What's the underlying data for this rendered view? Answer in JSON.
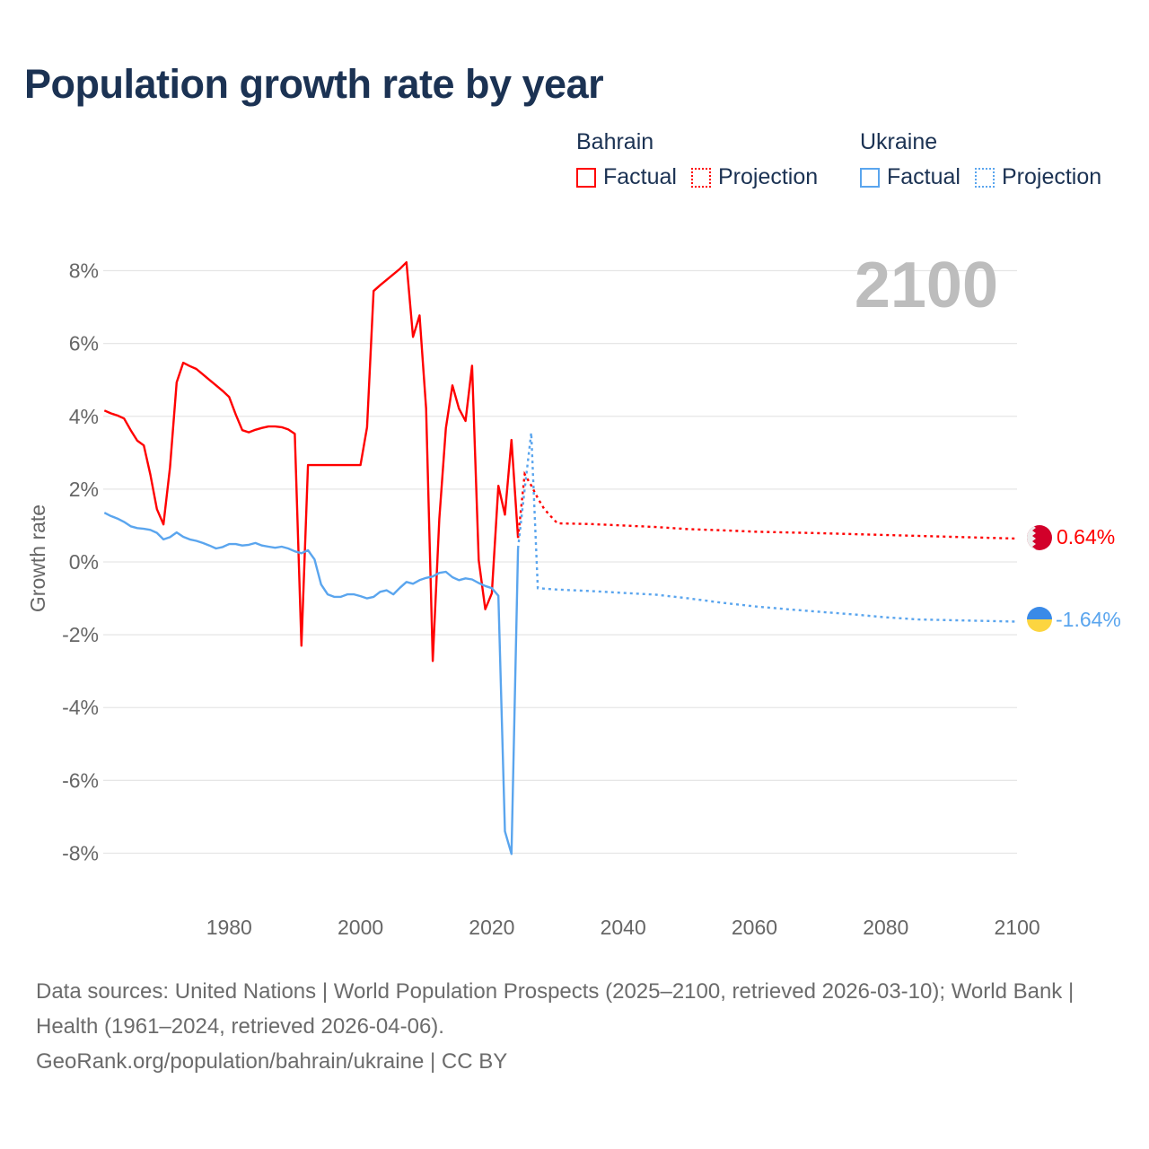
{
  "title": "Population growth rate by year",
  "legend": {
    "groups": [
      {
        "name": "Bahrain",
        "factual": "Factual",
        "projection": "Projection",
        "color": "#ff0000"
      },
      {
        "name": "Ukraine",
        "factual": "Factual",
        "projection": "Projection",
        "color": "#5aa5ee"
      }
    ]
  },
  "chart_data": {
    "type": "line",
    "title": "Population growth rate by year",
    "xlabel": "",
    "ylabel": "Growth rate",
    "xlim": [
      1961,
      2100
    ],
    "ylim": [
      -9,
      9
    ],
    "x_ticks": [
      1980,
      2000,
      2020,
      2040,
      2060,
      2080,
      2100
    ],
    "y_ticks": [
      8,
      6,
      4,
      2,
      0,
      -2,
      -4,
      -6,
      -8
    ],
    "y_tick_labels": [
      "8%",
      "6%",
      "4%",
      "2%",
      "0%",
      "-2%",
      "-4%",
      "-6%",
      "-8%"
    ],
    "year_watermark": "2100",
    "grid": true,
    "series": [
      {
        "name": "Bahrain",
        "color": "#ff0000",
        "factual": {
          "x": [
            1961,
            1962,
            1963,
            1964,
            1965,
            1966,
            1967,
            1968,
            1969,
            1970,
            1971,
            1972,
            1973,
            1974,
            1975,
            1976,
            1977,
            1978,
            1979,
            1980,
            1981,
            1982,
            1983,
            1984,
            1985,
            1986,
            1987,
            1988,
            1989,
            1990,
            1991,
            1992,
            1993,
            1994,
            1995,
            1996,
            1997,
            1998,
            1999,
            2000,
            2001,
            2002,
            2003,
            2004,
            2005,
            2006,
            2007,
            2008,
            2009,
            2010,
            2011,
            2012,
            2013,
            2014,
            2015,
            2016,
            2017,
            2018,
            2019,
            2020,
            2021,
            2022,
            2023,
            2024
          ],
          "y": [
            4.16,
            4.08,
            4.02,
            3.94,
            3.62,
            3.33,
            3.2,
            2.4,
            1.45,
            1.03,
            2.6,
            4.93,
            5.47,
            5.38,
            5.3,
            5.15,
            5.0,
            4.85,
            4.7,
            4.53,
            4.05,
            3.62,
            3.56,
            3.63,
            3.68,
            3.72,
            3.72,
            3.7,
            3.64,
            3.52,
            -2.3,
            2.66,
            2.66,
            2.66,
            2.66,
            2.66,
            2.66,
            2.66,
            2.66,
            2.66,
            3.7,
            7.44,
            7.6,
            7.75,
            7.9,
            8.05,
            8.23,
            6.18,
            6.77,
            4.21,
            -2.72,
            1.18,
            3.67,
            4.85,
            4.21,
            3.87,
            5.39,
            0.05,
            -1.3,
            -0.86,
            2.09,
            1.3,
            3.35,
            0.66
          ]
        },
        "projection": {
          "x": [
            2024,
            2025,
            2026,
            2027,
            2028,
            2029,
            2030,
            2035,
            2040,
            2045,
            2050,
            2055,
            2060,
            2070,
            2080,
            2090,
            2100
          ],
          "y": [
            0.66,
            2.41,
            2.1,
            1.75,
            1.45,
            1.25,
            1.06,
            1.04,
            1.0,
            0.96,
            0.9,
            0.87,
            0.83,
            0.79,
            0.74,
            0.69,
            0.64
          ]
        },
        "end_label": "0.64%",
        "flag": "bahrain-flag"
      },
      {
        "name": "Ukraine",
        "color": "#5aa5ee",
        "factual": {
          "x": [
            1961,
            1962,
            1963,
            1964,
            1965,
            1966,
            1967,
            1968,
            1969,
            1970,
            1971,
            1972,
            1973,
            1974,
            1975,
            1976,
            1977,
            1978,
            1979,
            1980,
            1981,
            1982,
            1983,
            1984,
            1985,
            1986,
            1987,
            1988,
            1989,
            1990,
            1991,
            1992,
            1993,
            1994,
            1995,
            1996,
            1997,
            1998,
            1999,
            2000,
            2001,
            2002,
            2003,
            2004,
            2005,
            2006,
            2007,
            2008,
            2009,
            2010,
            2011,
            2012,
            2013,
            2014,
            2015,
            2016,
            2017,
            2018,
            2019,
            2020,
            2021,
            2022,
            2023,
            2024
          ],
          "y": [
            1.35,
            1.26,
            1.19,
            1.1,
            0.98,
            0.93,
            0.91,
            0.88,
            0.8,
            0.62,
            0.68,
            0.81,
            0.69,
            0.62,
            0.58,
            0.52,
            0.45,
            0.37,
            0.41,
            0.49,
            0.49,
            0.45,
            0.47,
            0.52,
            0.45,
            0.42,
            0.39,
            0.42,
            0.37,
            0.29,
            0.24,
            0.32,
            0.07,
            -0.62,
            -0.89,
            -0.96,
            -0.96,
            -0.89,
            -0.89,
            -0.94,
            -1.0,
            -0.96,
            -0.82,
            -0.78,
            -0.89,
            -0.71,
            -0.55,
            -0.6,
            -0.5,
            -0.44,
            -0.4,
            -0.3,
            -0.27,
            -0.42,
            -0.5,
            -0.45,
            -0.48,
            -0.58,
            -0.66,
            -0.72,
            -0.93,
            -7.4,
            -8.02,
            0.37
          ]
        },
        "projection": {
          "x": [
            2024,
            2025,
            2026,
            2027,
            2030,
            2035,
            2040,
            2045,
            2050,
            2055,
            2060,
            2065,
            2070,
            2075,
            2080,
            2085,
            2090,
            2100
          ],
          "y": [
            0.37,
            2.0,
            3.55,
            -0.72,
            -0.76,
            -0.8,
            -0.85,
            -0.9,
            -1.0,
            -1.12,
            -1.22,
            -1.3,
            -1.37,
            -1.44,
            -1.52,
            -1.58,
            -1.6,
            -1.64
          ]
        },
        "end_label": "-1.64%",
        "flag": "ukraine-flag"
      }
    ]
  },
  "footer": {
    "sources": "Data sources: United Nations | World Population Prospects (2025–2100, retrieved 2026-03-10); World Bank | Health (1961–2024, retrieved 2026-04-06).",
    "link": "GeoRank.org/population/bahrain/ukraine | CC BY"
  }
}
